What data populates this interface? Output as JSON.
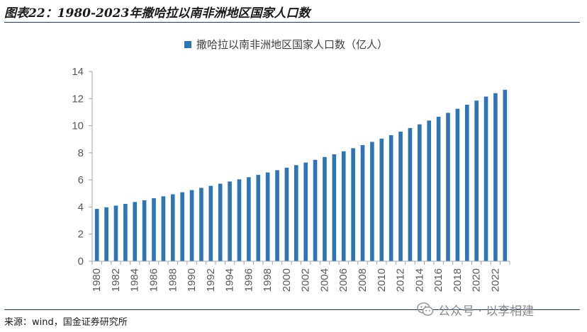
{
  "figure_title": "图表22：1980-2023年撒哈拉以南非洲地区国家人口数",
  "source_note": "来源：wind，国金证券研究所",
  "watermark": "公众号 · 以李相建",
  "colors": {
    "bar": "#2e75b6",
    "axis": "#a6a6a6",
    "rule": "#1f3864",
    "text": "#595959"
  },
  "chart_data": {
    "type": "bar",
    "title": "",
    "xlabel": "",
    "ylabel": "",
    "ylim": [
      0,
      14
    ],
    "yticks": [
      0,
      2,
      4,
      6,
      8,
      10,
      12,
      14
    ],
    "grid": false,
    "legend_position": "top-center",
    "series": [
      {
        "name": "撒哈拉以南非洲地区国家人口数（亿人）",
        "values": [
          3.86,
          3.98,
          4.1,
          4.23,
          4.37,
          4.5,
          4.65,
          4.79,
          4.94,
          5.09,
          5.25,
          5.41,
          5.56,
          5.72,
          5.88,
          6.04,
          6.2,
          6.37,
          6.55,
          6.72,
          6.9,
          7.09,
          7.28,
          7.48,
          7.69,
          7.89,
          8.11,
          8.34,
          8.57,
          8.81,
          9.05,
          9.3,
          9.56,
          9.83,
          10.1,
          10.38,
          10.66,
          10.95,
          11.25,
          11.55,
          11.85,
          12.15,
          12.4,
          12.65
        ]
      }
    ],
    "categories": [
      "1980",
      "1981",
      "1982",
      "1983",
      "1984",
      "1985",
      "1986",
      "1987",
      "1988",
      "1989",
      "1990",
      "1991",
      "1992",
      "1993",
      "1994",
      "1995",
      "1996",
      "1997",
      "1998",
      "1999",
      "2000",
      "2001",
      "2002",
      "2003",
      "2004",
      "2005",
      "2006",
      "2007",
      "2008",
      "2009",
      "2010",
      "2011",
      "2012",
      "2013",
      "2014",
      "2015",
      "2016",
      "2017",
      "2018",
      "2019",
      "2020",
      "2021",
      "2022",
      "2023"
    ],
    "x_tick_labels": [
      "1980",
      "1982",
      "1984",
      "1986",
      "1988",
      "1990",
      "1992",
      "1994",
      "1996",
      "1998",
      "2000",
      "2002",
      "2004",
      "2006",
      "2008",
      "2010",
      "2012",
      "2014",
      "2016",
      "2018",
      "2020",
      "2022"
    ]
  }
}
